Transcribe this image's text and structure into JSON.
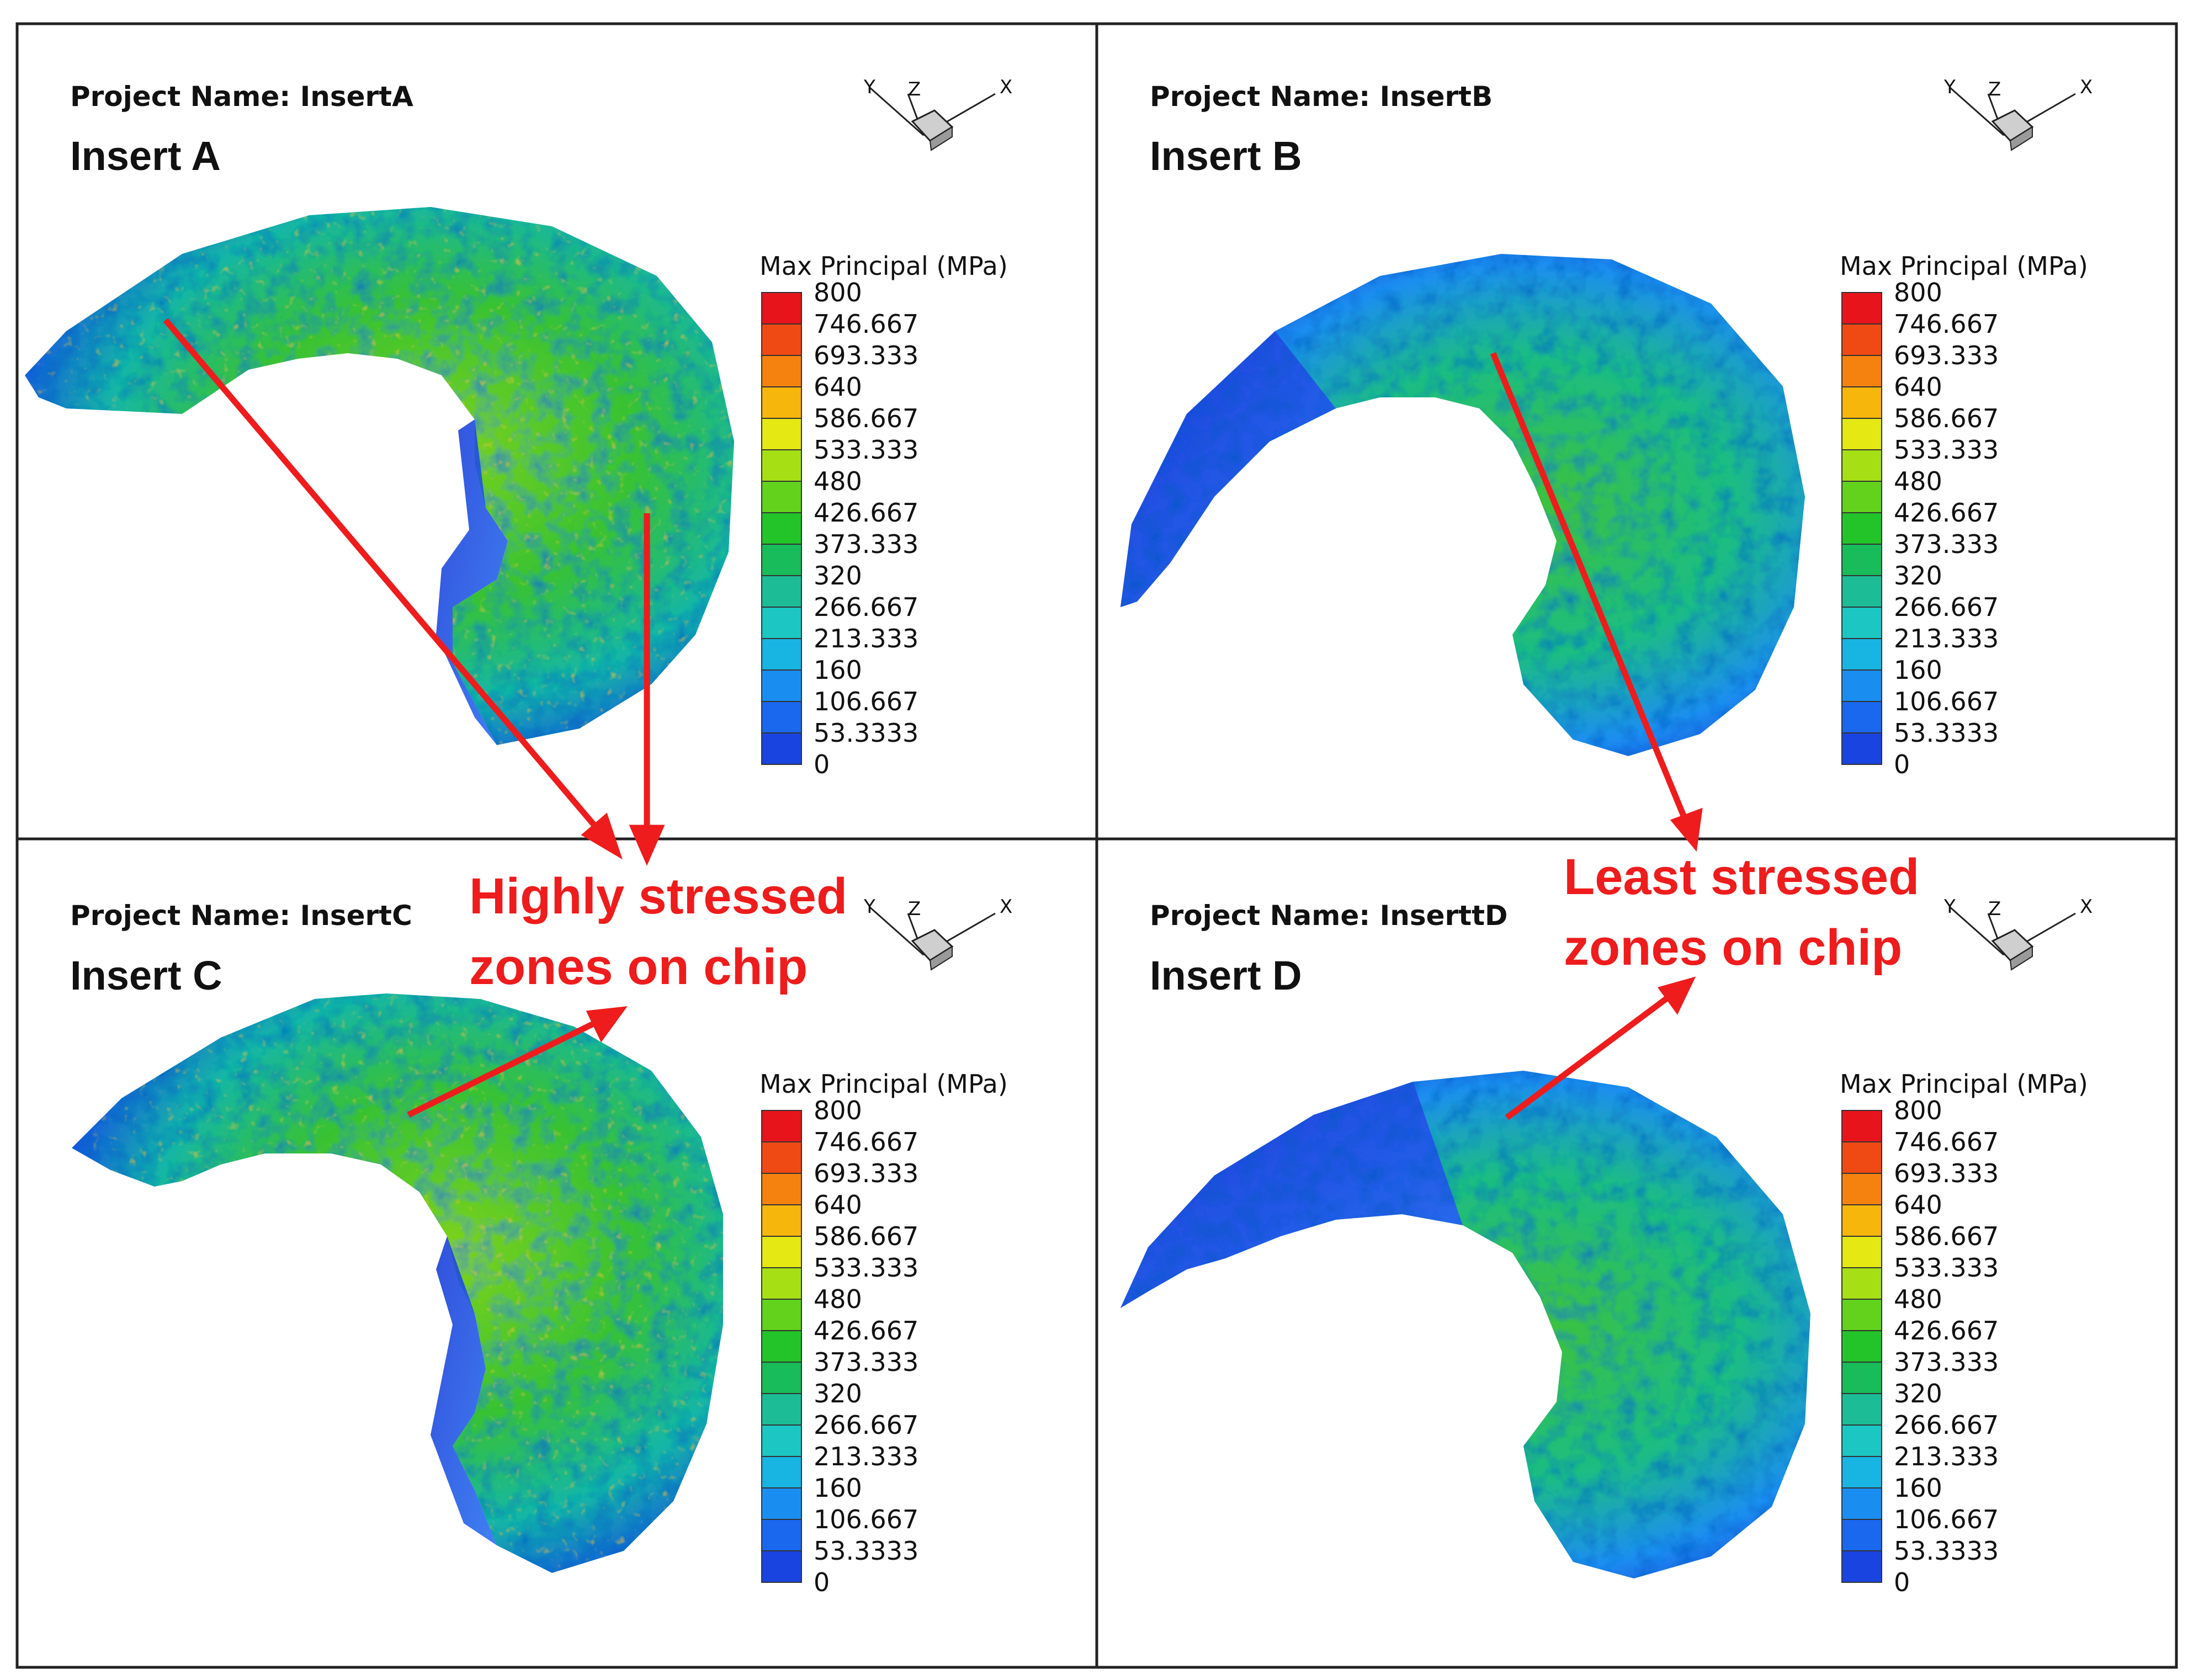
{
  "panels": [
    {
      "project": "Project Name: InsertA",
      "insert": "Insert A",
      "variant": "high"
    },
    {
      "project": "Project Name: InsertB",
      "insert": "Insert B",
      "variant": "low"
    },
    {
      "project": "Project Name: InsertC",
      "insert": "Insert C",
      "variant": "high"
    },
    {
      "project": "Project Name: InserttD",
      "insert": "Insert D",
      "variant": "low"
    }
  ],
  "legend": {
    "title": "Max Principal (MPa)",
    "ticks": [
      "800",
      "746.667",
      "693.333",
      "640",
      "586.667",
      "533.333",
      "480",
      "426.667",
      "373.333",
      "320",
      "266.667",
      "213.333",
      "160",
      "106.667",
      "53.3333",
      "0"
    ],
    "colors": [
      "#e8141c",
      "#f04a14",
      "#f5820f",
      "#f7b60c",
      "#e5e812",
      "#a6e014",
      "#62d21c",
      "#22c42a",
      "#18bc5a",
      "#1cbc96",
      "#1cc6c2",
      "#18b4e2",
      "#1a8ef0",
      "#1a68ee",
      "#1a44e0"
    ]
  },
  "axes": {
    "y": "Y",
    "z": "Z",
    "x": "X"
  },
  "annotations": {
    "high": [
      "Highly stressed",
      "zones on chip"
    ],
    "low": [
      "Least stressed",
      "zones on chip"
    ],
    "color": "#ee1c1c"
  }
}
